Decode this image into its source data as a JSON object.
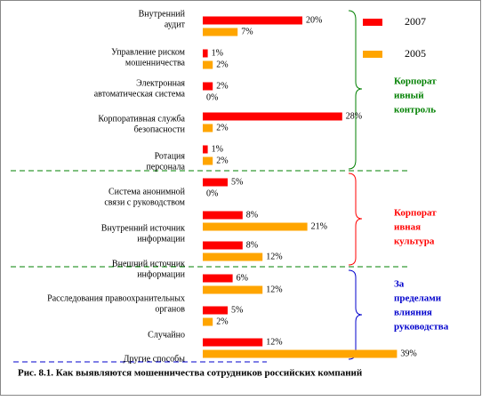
{
  "chart_data": {
    "type": "bar",
    "orientation": "horizontal",
    "caption": "Рис. 8.1.  Как выявляются мошенничества сотрудников российских компаний",
    "categories": [
      [
        "Внутренний",
        "аудит"
      ],
      [
        "Управление риском",
        "мошенничества"
      ],
      [
        "Электронная",
        "автоматическая система"
      ],
      [
        "Корпоративная служба",
        "безопасности"
      ],
      [
        "Ротация",
        "персонала"
      ],
      [
        "Система анонимной",
        "связи с руководством"
      ],
      [
        "Внутренний источник",
        "информации"
      ],
      [
        "Внешний источник",
        "информации"
      ],
      [
        "Расследования правоохранительных",
        "органов"
      ],
      [
        "Случайно"
      ],
      [
        "Другие способы"
      ]
    ],
    "series": [
      {
        "name": "2007",
        "color": "#ff0000",
        "values": [
          20,
          1,
          2,
          28,
          1,
          5,
          8,
          8,
          6,
          5,
          12
        ],
        "value_labels": [
          "20%",
          "1%",
          "2%",
          "28%",
          "1%",
          "5%",
          "8%",
          "8%",
          "6%",
          "5%",
          "12%"
        ]
      },
      {
        "name": "2005",
        "color": "#ffa500",
        "values": [
          7,
          2,
          0,
          2,
          2,
          0,
          21,
          12,
          12,
          2,
          39
        ],
        "value_labels": [
          "7%",
          "2%",
          "0%",
          "2%",
          "2%",
          "0%",
          "21%",
          "12%",
          "12%",
          "2%",
          "39%"
        ]
      }
    ],
    "groups": [
      {
        "lines": [
          "Корпорат",
          "ивный",
          "контроль"
        ],
        "color": "#008000"
      },
      {
        "lines": [
          "Корпорат",
          "ивная",
          "культура"
        ],
        "color": "#ff0000"
      },
      {
        "lines": [
          "За",
          "пределами",
          "влияния",
          "руководства"
        ],
        "color": "#0000cc"
      }
    ]
  }
}
